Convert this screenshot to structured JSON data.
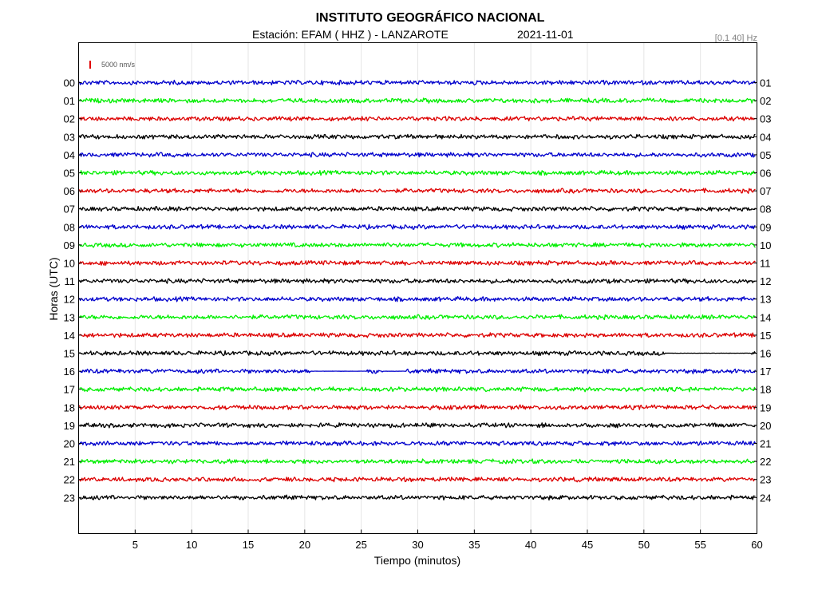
{
  "header": {
    "title": "INSTITUTO GEOGRÁFICO NACIONAL",
    "station": "Estación:  EFAM ( HHZ ) - LANZAROTE",
    "date": "2021-11-01",
    "filter": "[0.1 40] Hz",
    "scale_label": "5000 nm/s"
  },
  "colors": {
    "scale_bar": "#e00000",
    "traces": [
      "#0000cc",
      "#00ee00",
      "#dd0000",
      "#000000"
    ]
  },
  "chart_data": {
    "type": "line",
    "title": "INSTITUTO GEOGRÁFICO NACIONAL",
    "xlabel": "Tiempo (minutos)",
    "ylabel": "Horas (UTC)",
    "xlim": [
      0,
      60
    ],
    "x_ticks": [
      "5",
      "10",
      "15",
      "20",
      "25",
      "30",
      "35",
      "40",
      "45",
      "50",
      "55",
      "60"
    ],
    "grid": true,
    "left_labels": [
      "00",
      "01",
      "02",
      "03",
      "04",
      "05",
      "06",
      "07",
      "08",
      "09",
      "10",
      "11",
      "12",
      "13",
      "14",
      "15",
      "16",
      "17",
      "18",
      "19",
      "20",
      "21",
      "22",
      "23"
    ],
    "right_labels": [
      "01",
      "02",
      "03",
      "04",
      "05",
      "06",
      "07",
      "08",
      "09",
      "10",
      "11",
      "12",
      "13",
      "14",
      "15",
      "16",
      "17",
      "18",
      "19",
      "20",
      "21",
      "22",
      "23",
      "24"
    ],
    "series_color_cycle": [
      "blue",
      "green",
      "red",
      "black"
    ],
    "gaps": [
      {
        "hour": "15",
        "start_min": 52,
        "end_min": 59.5
      },
      {
        "hour": "16",
        "start_min": 20.5,
        "end_min": 25.5
      },
      {
        "hour": "16",
        "start_min": 27,
        "end_min": 29
      }
    ]
  }
}
